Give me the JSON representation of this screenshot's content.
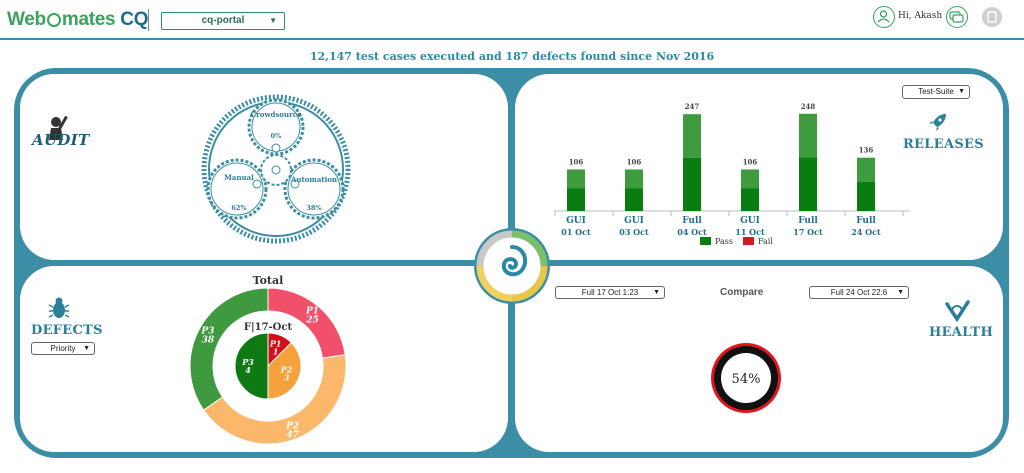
{
  "header": {
    "logo_text": "Web",
    "logo_text_tail": "mates",
    "logo_cq": "CQ",
    "project_select": "cq-portal",
    "user_greeting": "Hi, Akash"
  },
  "summary": "12,147 test cases executed and 187 defects found since Nov 2016",
  "audit": {
    "title": "AUDIT",
    "gears": [
      {
        "label": "Crowdsource",
        "value": "0%"
      },
      {
        "label": "Manual",
        "value": "62%"
      },
      {
        "label": "Automation",
        "value": "38%"
      }
    ]
  },
  "releases": {
    "title": "RELEASES",
    "filter": "Test-Suite",
    "legend": {
      "pass": "Pass",
      "fail": "Fail"
    },
    "colors": {
      "pass": "#0a7d10",
      "pass_light": "#3e9b3e",
      "fail": "#d11a1a"
    },
    "chart_data": {
      "type": "bar",
      "categories": [
        "GUI 01 Oct",
        "GUI 03 Oct",
        "Full 04 Oct",
        "GUI 11 Oct",
        "Full 17 Oct",
        "Full 24 Oct"
      ],
      "category_lines": [
        [
          "GUI",
          "01 Oct"
        ],
        [
          "GUI",
          "03 Oct"
        ],
        [
          "Full",
          "04 Oct"
        ],
        [
          "GUI",
          "11 Oct"
        ],
        [
          "Full",
          "17 Oct"
        ],
        [
          "Full",
          "24 Oct"
        ]
      ],
      "values": [
        106,
        106,
        247,
        106,
        248,
        136
      ],
      "series": [
        {
          "name": "Pass",
          "values": [
            106,
            106,
            247,
            106,
            248,
            136
          ]
        },
        {
          "name": "Fail",
          "values": [
            0,
            0,
            0,
            0,
            0,
            0
          ]
        }
      ],
      "ylim": [
        0,
        250
      ]
    }
  },
  "defects": {
    "title": "DEFECTS",
    "filter": "Priority",
    "colors": {
      "P1": "#f0506a",
      "P2": "#fbb86b",
      "P3": "#3f9a3f",
      "P1_inner": "#d40f1a",
      "P2_inner": "#f5a23c",
      "P3_inner": "#0f7a13"
    },
    "chart_data": [
      {
        "type": "pie",
        "title": "Total",
        "labels": [
          "P1",
          "P2",
          "P3"
        ],
        "values": [
          25,
          47,
          38
        ]
      },
      {
        "type": "pie",
        "title": "F|17-Oct",
        "labels": [
          "P1",
          "P2",
          "P3"
        ],
        "values": [
          1,
          3,
          4
        ]
      }
    ]
  },
  "health": {
    "title": "HEALTH",
    "compare_label": "Compare",
    "left_select": "Full 17 Oct 1:23",
    "right_select": "Full 24 Oct 22:6",
    "score": "54%"
  }
}
